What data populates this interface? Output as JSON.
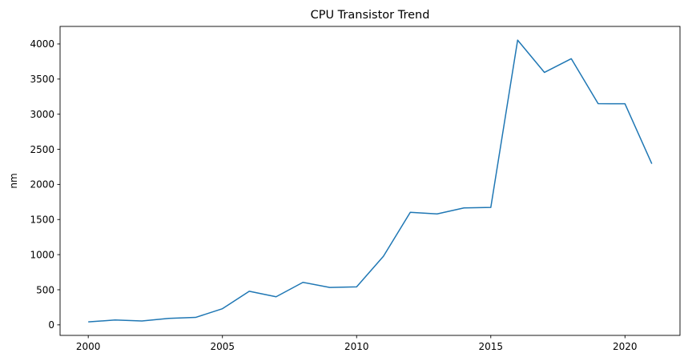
{
  "chart_data": {
    "type": "line",
    "title": "CPU Transistor Trend",
    "xlabel": "",
    "ylabel": "nm",
    "xlim": [
      1998.95,
      2022.05
    ],
    "ylim": [
      -150,
      4250
    ],
    "x_ticks": [
      2000,
      2005,
      2010,
      2015,
      2020
    ],
    "y_ticks": [
      0,
      500,
      1000,
      1500,
      2000,
      2500,
      3000,
      3500,
      4000
    ],
    "grid": false,
    "legend": "none",
    "series": [
      {
        "color": "#1f77b4",
        "x": [
          2000,
          2001,
          2002,
          2003,
          2004,
          2005,
          2006,
          2007,
          2008,
          2009,
          2010,
          2011,
          2012,
          2013,
          2014,
          2015,
          2016,
          2017,
          2018,
          2019,
          2020,
          2021
        ],
        "values": [
          42,
          69,
          55,
          92,
          106,
          230,
          478,
          400,
          605,
          533,
          541,
          977,
          1603,
          1580,
          1665,
          1672,
          4055,
          3595,
          3790,
          3150,
          3148,
          2295
        ]
      }
    ]
  }
}
